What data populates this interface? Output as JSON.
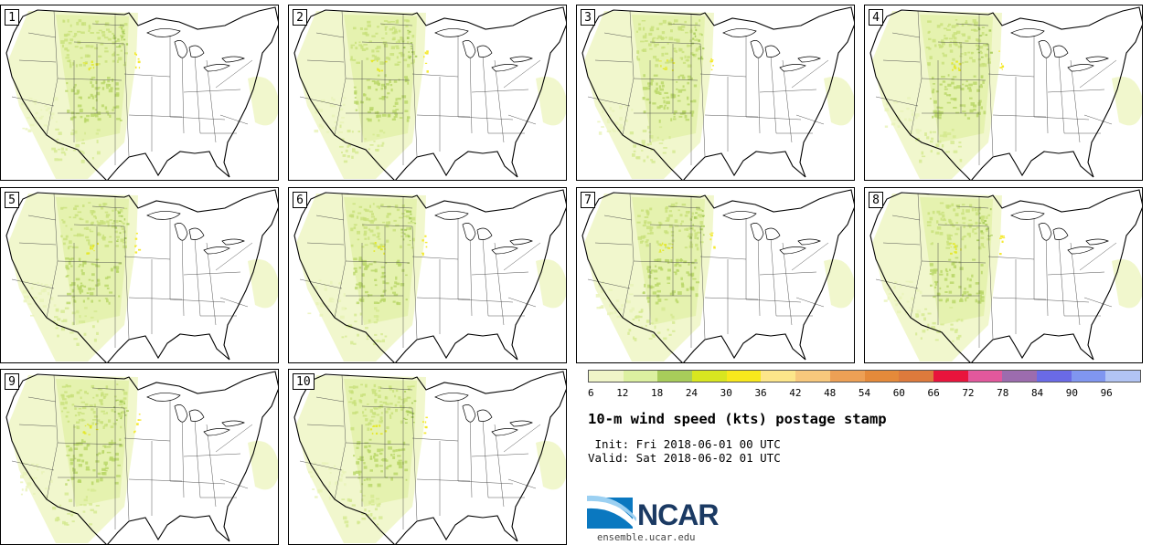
{
  "panels": [
    {
      "label": "1"
    },
    {
      "label": "2"
    },
    {
      "label": "3"
    },
    {
      "label": "4"
    },
    {
      "label": "5"
    },
    {
      "label": "6"
    },
    {
      "label": "7"
    },
    {
      "label": "8"
    },
    {
      "label": "9"
    },
    {
      "label": "10"
    }
  ],
  "colorbar": {
    "colors": [
      "#f0f5c8",
      "#dcf0a0",
      "#a8cc5a",
      "#d8e620",
      "#f8e81c",
      "#fde68a",
      "#f8c87c",
      "#eda055",
      "#e58a3a",
      "#dd7a3c",
      "#e8143c",
      "#e2589c",
      "#9c6cae",
      "#6a6ae6",
      "#8096f0",
      "#b2c4f4"
    ],
    "ticks": [
      "6",
      "12",
      "18",
      "24",
      "30",
      "36",
      "42",
      "48",
      "54",
      "60",
      "66",
      "72",
      "78",
      "84",
      "90",
      "96"
    ]
  },
  "title": "10-m wind speed (kts) postage stamp",
  "init": " Init: Fri 2018-06-01 00 UTC",
  "valid": "Valid: Sat 2018-06-02 01 UTC",
  "logo": {
    "text": "NCAR",
    "url": "ensemble.ucar.edu"
  }
}
